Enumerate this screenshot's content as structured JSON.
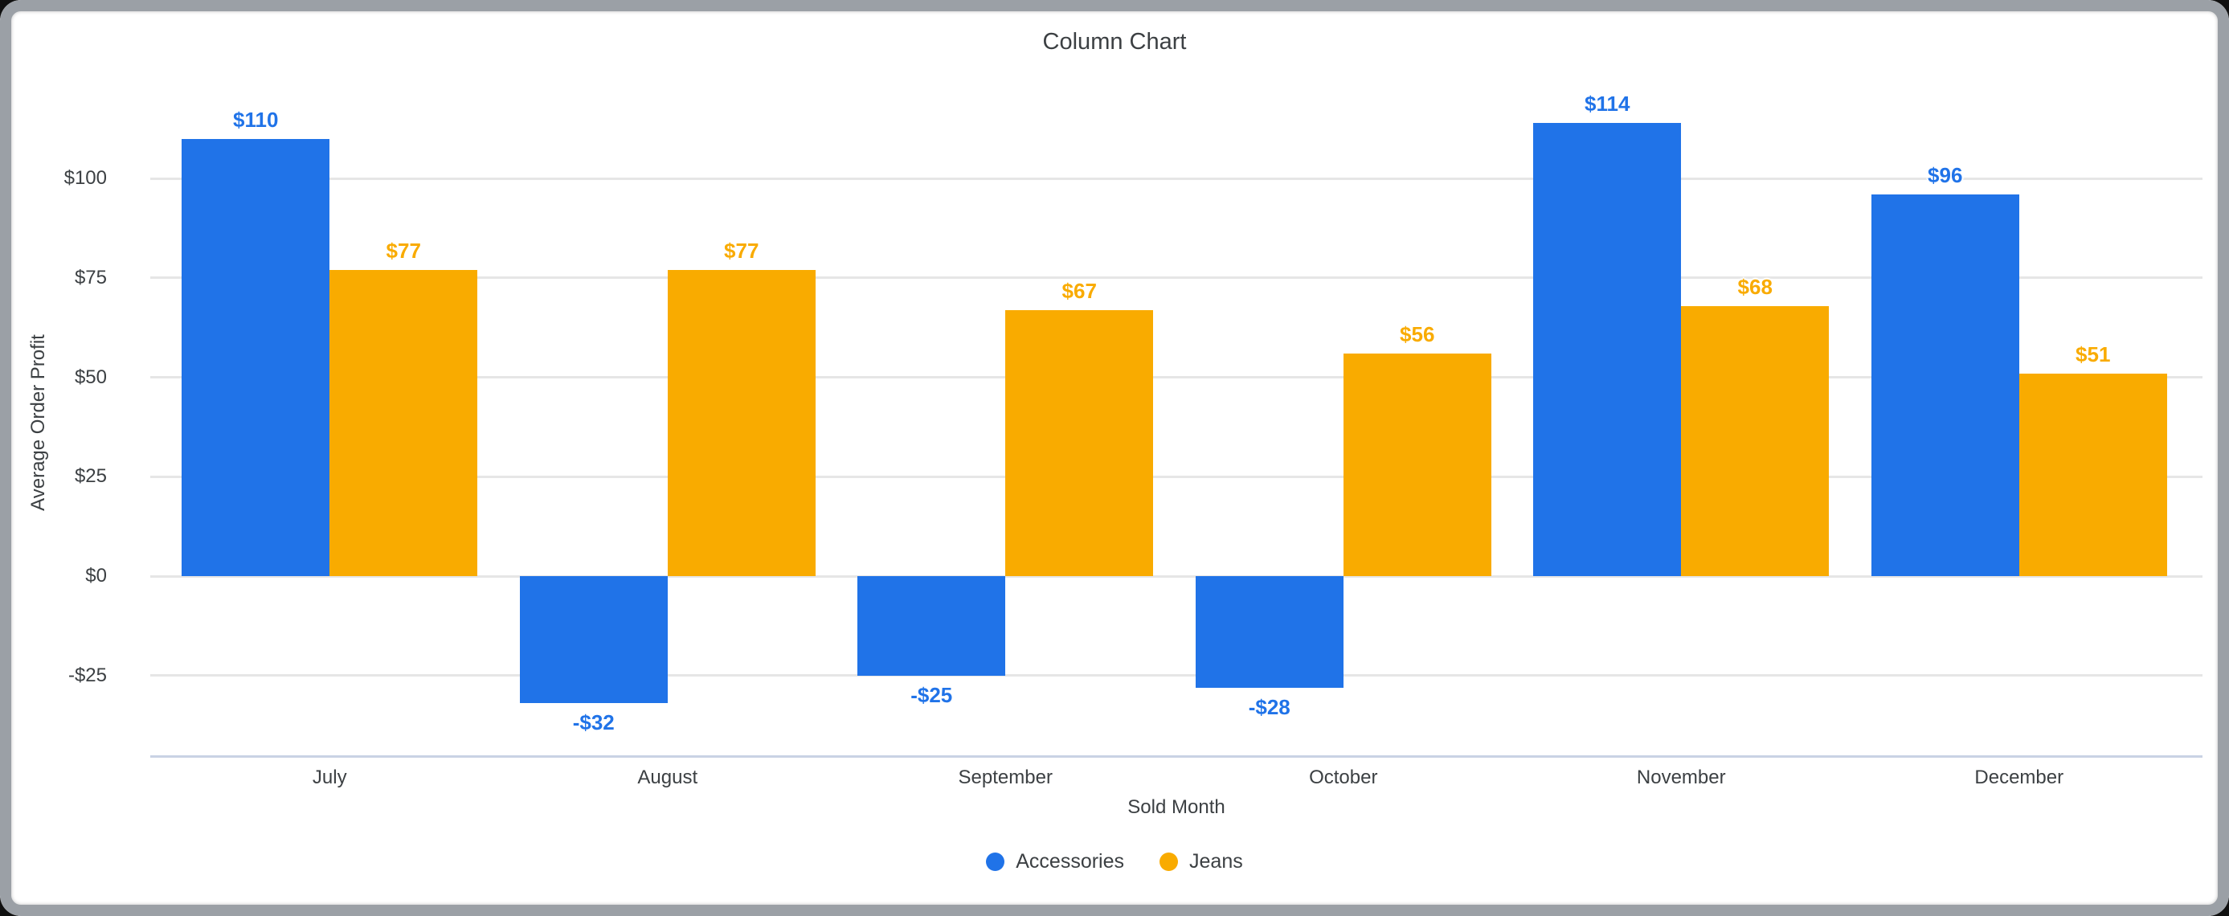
{
  "window": {
    "frame_color": "#9BA0A6",
    "background_color": "#101010",
    "card_color": "#FFFFFF"
  },
  "chart_data": {
    "type": "bar",
    "title": "Column Chart",
    "xlabel": "Sold Month",
    "ylabel": "Average Order Profit",
    "categories": [
      "July",
      "August",
      "September",
      "October",
      "November",
      "December"
    ],
    "series": [
      {
        "name": "Accessories",
        "color": "#2073E8",
        "values": [
          110,
          -32,
          -25,
          -28,
          114,
          96
        ],
        "value_labels": [
          "$110",
          "-$32",
          "-$25",
          "-$28",
          "$114",
          "$96"
        ]
      },
      {
        "name": "Jeans",
        "color": "#F9AB00",
        "values": [
          77,
          77,
          67,
          56,
          68,
          51
        ],
        "value_labels": [
          "$77",
          "$77",
          "$67",
          "$56",
          "$68",
          "$51"
        ]
      }
    ],
    "y_ticks": [
      {
        "value": 100,
        "label": "$100"
      },
      {
        "value": 75,
        "label": "$75"
      },
      {
        "value": 50,
        "label": "$50"
      },
      {
        "value": 25,
        "label": "$25"
      },
      {
        "value": 0,
        "label": "$0"
      },
      {
        "value": -25,
        "label": "-$25"
      }
    ],
    "ylim": [
      -45.5,
      122.7
    ],
    "grid": true,
    "legend_position": "bottom",
    "legend": [
      {
        "label": "Accessories",
        "color": "#2073E8"
      },
      {
        "label": "Jeans",
        "color": "#F9AB00"
      }
    ],
    "colors": {
      "gridline": "#E6E6E6",
      "baseline": "#C9D2E4",
      "text": "#3C4043"
    }
  }
}
